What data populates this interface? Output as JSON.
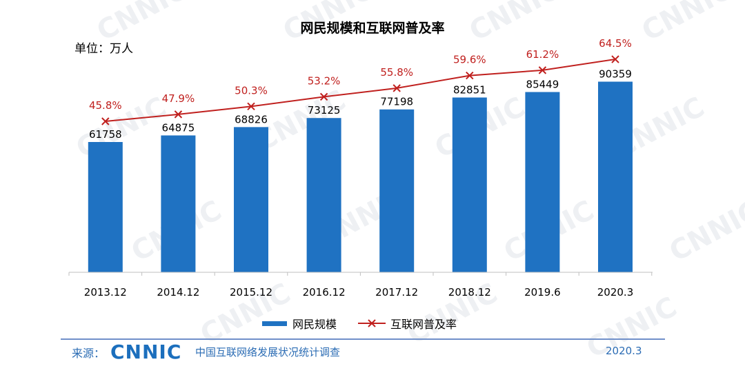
{
  "chart_data": {
    "type": "bar",
    "title": "网民规模和互联网普及率",
    "unit_label": "单位：万人",
    "categories": [
      "2013.12",
      "2014.12",
      "2015.12",
      "2016.12",
      "2017.12",
      "2018.12",
      "2019.6",
      "2020.3"
    ],
    "series": [
      {
        "name": "网民规模",
        "type": "bar",
        "color": "#1f72c2",
        "values": [
          61758,
          64875,
          68826,
          73125,
          77198,
          82851,
          85449,
          90359
        ]
      },
      {
        "name": "互联网普及率",
        "type": "line",
        "color": "#c0201e",
        "values": [
          45.8,
          47.9,
          50.3,
          53.2,
          55.8,
          59.6,
          61.2,
          64.5
        ],
        "labels": [
          "45.8%",
          "47.9%",
          "50.3%",
          "53.2%",
          "55.8%",
          "59.6%",
          "61.2%",
          "64.5%"
        ]
      }
    ],
    "ylim": [
      0,
      100000
    ],
    "rate_ylim": [
      0,
      100
    ],
    "legend_position": "bottom-center"
  },
  "footer": {
    "source_label": "来源：",
    "logo_text": "CNNIC",
    "source_text": "中国互联网络发展状况统计调查",
    "date": "2020.3"
  },
  "watermark_text": "CNNIC"
}
